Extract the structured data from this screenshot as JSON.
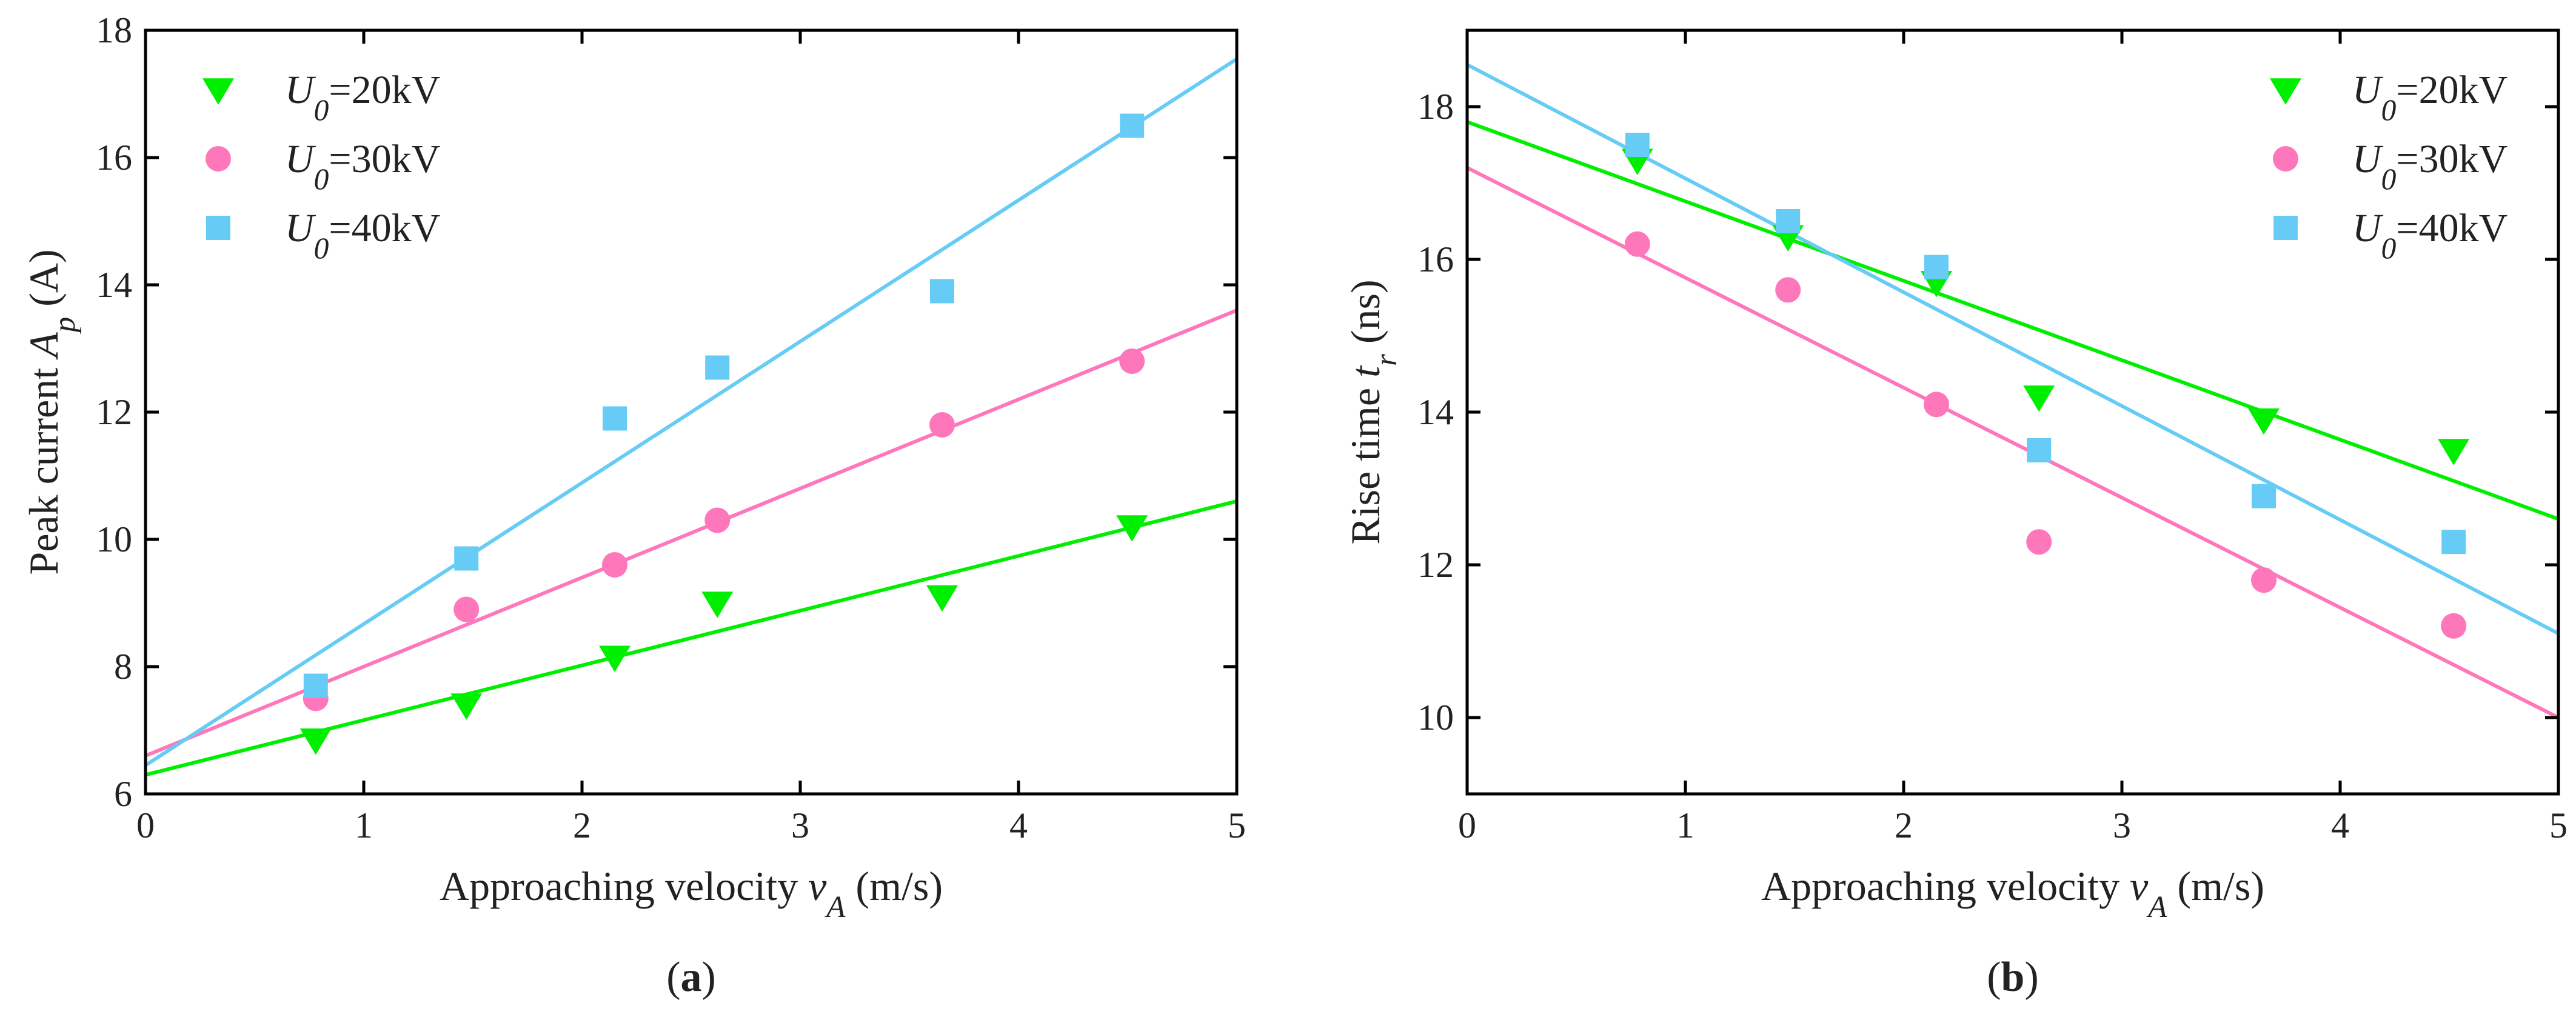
{
  "colors": {
    "series_20kV": "#00ee00",
    "series_30kV": "#ff77bb",
    "series_40kV": "#66ccf5",
    "axis": "#000000"
  },
  "chart_data": [
    {
      "type": "scatter",
      "panel_label": "a",
      "caption": "(a)",
      "xlabel": {
        "main": "Approaching velocity  ",
        "symbol": "v",
        "sub": "A",
        "unit": " (m/s)"
      },
      "ylabel": {
        "main": "Peak current  ",
        "symbol": "A",
        "sub": "p",
        "unit": " (A)"
      },
      "xlim": [
        0,
        5
      ],
      "ylim": [
        6,
        18
      ],
      "xticks": [
        0,
        1,
        2,
        3,
        4,
        5
      ],
      "yticks": [
        6,
        8,
        10,
        12,
        14,
        16,
        18
      ],
      "legend_position": "top-left",
      "series": [
        {
          "key": "series_20kV",
          "marker": "triangle-down",
          "legend": {
            "sym": "U",
            "sub": "0",
            "rest": "=20kV"
          },
          "x": [
            0.78,
            1.47,
            2.15,
            2.62,
            3.65,
            4.52
          ],
          "y": [
            6.85,
            7.4,
            8.15,
            9.0,
            9.1,
            10.2
          ],
          "fit": {
            "intercept": 6.3,
            "slope": 0.86
          }
        },
        {
          "key": "series_30kV",
          "marker": "circle",
          "legend": {
            "sym": "U",
            "sub": "0",
            "rest": "=30kV"
          },
          "x": [
            0.78,
            1.47,
            2.15,
            2.62,
            3.65,
            4.52
          ],
          "y": [
            7.5,
            8.9,
            9.6,
            10.3,
            11.8,
            12.8
          ],
          "fit": {
            "intercept": 6.6,
            "slope": 1.4
          }
        },
        {
          "key": "series_40kV",
          "marker": "square",
          "legend": {
            "sym": "U",
            "sub": "0",
            "rest": "=40kV"
          },
          "x": [
            0.78,
            1.47,
            2.15,
            2.62,
            3.65,
            4.52
          ],
          "y": [
            7.7,
            9.7,
            11.9,
            12.7,
            13.9,
            16.5
          ],
          "fit": {
            "intercept": 6.45,
            "slope": 2.22
          }
        }
      ]
    },
    {
      "type": "scatter",
      "panel_label": "b",
      "caption": "(b)",
      "xlabel": {
        "main": "Approaching velocity  ",
        "symbol": "v",
        "sub": "A",
        "unit": " (m/s)"
      },
      "ylabel": {
        "main": "Rise time  ",
        "symbol": "t",
        "sub": "r",
        "unit": " (ns)"
      },
      "xlim": [
        0,
        5
      ],
      "ylim": [
        9,
        19
      ],
      "xticks": [
        0,
        1,
        2,
        3,
        4,
        5
      ],
      "yticks": [
        10,
        12,
        14,
        16,
        18
      ],
      "legend_position": "top-right",
      "series": [
        {
          "key": "series_20kV",
          "marker": "triangle-down",
          "legend": {
            "sym": "U",
            "sub": "0",
            "rest": "=20kV"
          },
          "x": [
            0.78,
            1.47,
            2.15,
            2.62,
            3.65,
            4.52
          ],
          "y": [
            17.3,
            16.3,
            15.7,
            14.2,
            13.9,
            13.5
          ],
          "fit": {
            "intercept": 17.8,
            "slope": -1.04
          }
        },
        {
          "key": "series_30kV",
          "marker": "circle",
          "legend": {
            "sym": "U",
            "sub": "0",
            "rest": "=30kV"
          },
          "x": [
            0.78,
            1.47,
            2.15,
            2.62,
            3.65,
            4.52
          ],
          "y": [
            16.2,
            15.6,
            14.1,
            12.3,
            11.8,
            11.2
          ],
          "fit": {
            "intercept": 17.2,
            "slope": -1.44
          }
        },
        {
          "key": "series_40kV",
          "marker": "square",
          "legend": {
            "sym": "U",
            "sub": "0",
            "rest": "=40kV"
          },
          "x": [
            0.78,
            1.47,
            2.15,
            2.62,
            3.65,
            4.52
          ],
          "y": [
            17.5,
            16.5,
            15.9,
            13.5,
            12.9,
            12.3
          ],
          "fit": {
            "intercept": 18.55,
            "slope": -1.49
          }
        }
      ]
    }
  ]
}
